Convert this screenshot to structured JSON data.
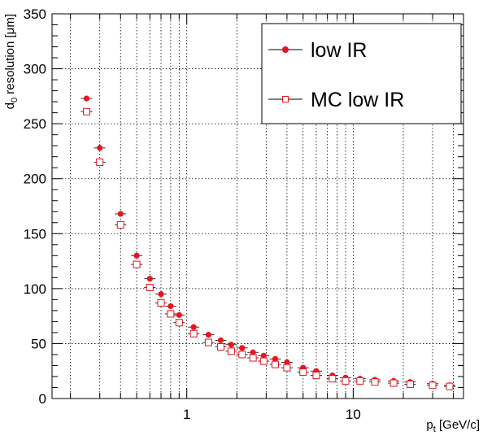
{
  "chart_data": {
    "type": "scatter",
    "xlabel": {
      "main": "p",
      "sub": "t",
      "rest": " [GeV/c]"
    },
    "ylabel": {
      "main": "d",
      "sub": "0",
      "rest": " resolution [μm]"
    },
    "x_scale": "log",
    "xlim": [
      0.155,
      46
    ],
    "ylim": [
      0,
      350
    ],
    "x_tick_labels": [
      {
        "value": 1,
        "label": "1"
      },
      {
        "value": 10,
        "label": "10"
      }
    ],
    "y_ticks": [
      0,
      50,
      100,
      150,
      200,
      250,
      300,
      350
    ],
    "grid": true,
    "legend_position": "top-right",
    "series": [
      {
        "name": "low IR",
        "marker": "filled-circle",
        "color": "#e8141e",
        "points": [
          [
            0.25,
            273
          ],
          [
            0.3,
            228
          ],
          [
            0.4,
            168
          ],
          [
            0.5,
            130
          ],
          [
            0.6,
            109
          ],
          [
            0.7,
            95
          ],
          [
            0.8,
            84
          ],
          [
            0.9,
            76
          ],
          [
            1.1,
            65
          ],
          [
            1.35,
            58
          ],
          [
            1.6,
            53
          ],
          [
            1.85,
            49
          ],
          [
            2.15,
            46
          ],
          [
            2.5,
            42
          ],
          [
            2.9,
            39
          ],
          [
            3.4,
            36
          ],
          [
            4.0,
            33
          ],
          [
            5.0,
            28
          ],
          [
            6.0,
            25
          ],
          [
            7.5,
            21
          ],
          [
            9.0,
            19
          ],
          [
            11.0,
            18
          ],
          [
            13.5,
            17
          ],
          [
            17.5,
            16
          ],
          [
            22.0,
            15
          ],
          [
            30.0,
            13.5
          ],
          [
            38.0,
            12
          ]
        ]
      },
      {
        "name": "MC low IR",
        "marker": "open-square",
        "color": "#e8141e",
        "points": [
          [
            0.25,
            261
          ],
          [
            0.3,
            215
          ],
          [
            0.4,
            158
          ],
          [
            0.5,
            122
          ],
          [
            0.6,
            101
          ],
          [
            0.7,
            87
          ],
          [
            0.8,
            77
          ],
          [
            0.9,
            69
          ],
          [
            1.1,
            59
          ],
          [
            1.35,
            51
          ],
          [
            1.6,
            47
          ],
          [
            1.85,
            43
          ],
          [
            2.15,
            40
          ],
          [
            2.5,
            37
          ],
          [
            2.9,
            34
          ],
          [
            3.4,
            31
          ],
          [
            4.0,
            28
          ],
          [
            5.0,
            24
          ],
          [
            6.0,
            21
          ],
          [
            7.5,
            18
          ],
          [
            9.0,
            16
          ],
          [
            11.0,
            16
          ],
          [
            13.5,
            15
          ],
          [
            17.5,
            14
          ],
          [
            22.0,
            13
          ],
          [
            30.0,
            12
          ],
          [
            38.0,
            11
          ]
        ]
      }
    ]
  }
}
